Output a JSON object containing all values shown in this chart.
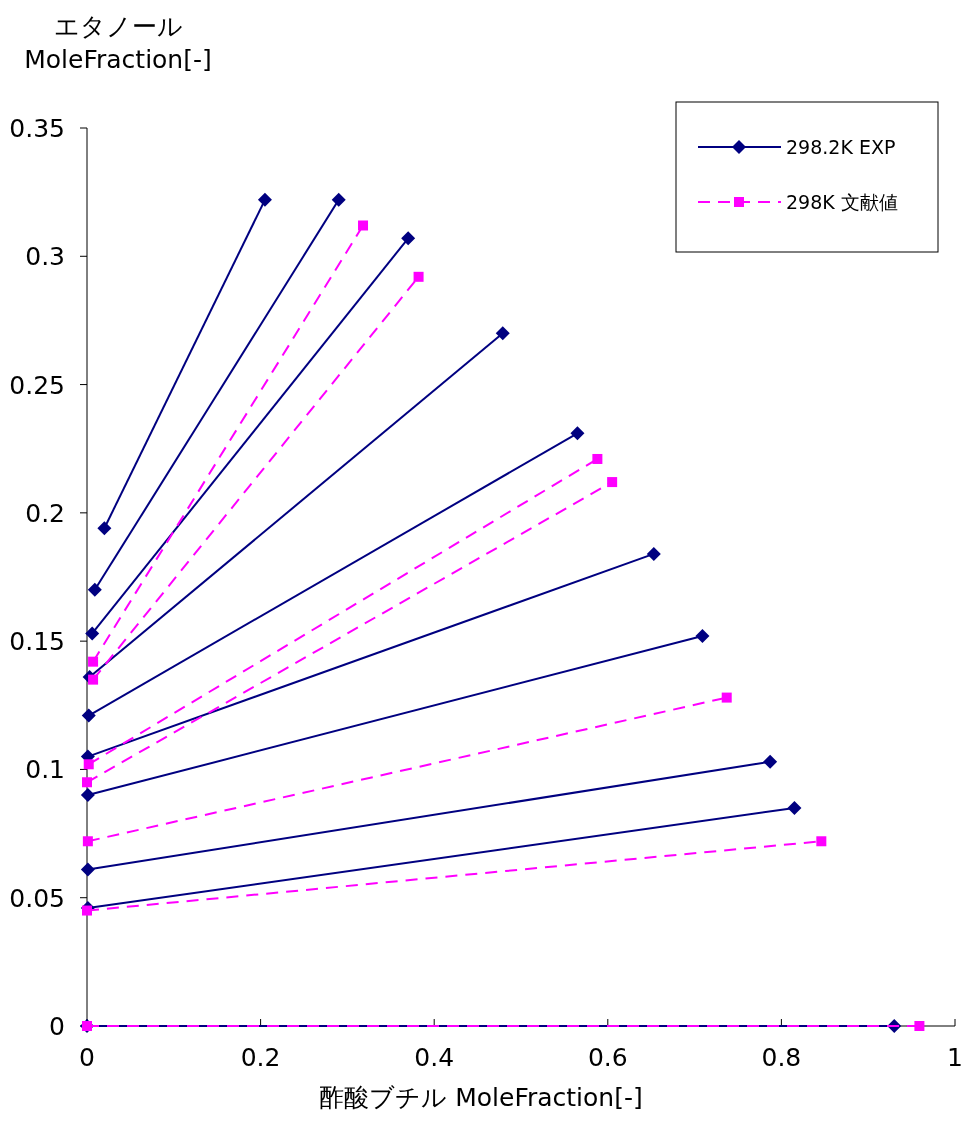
{
  "chart_data": {
    "type": "line",
    "xlabel": "酢酸ブチル  MoleFraction[-]",
    "ylabel": "エタノール\nMoleFraction[-]",
    "xlim": [
      0,
      1
    ],
    "xticks": [
      0,
      0.2,
      0.4,
      0.6,
      0.8,
      1
    ],
    "ylim": [
      0,
      0.35
    ],
    "yticks": [
      0,
      0.05,
      0.1,
      0.15,
      0.2,
      0.25,
      0.3,
      0.35
    ],
    "grid": false,
    "legend": "top right",
    "series": [
      {
        "name": "298.2K EXP",
        "color": "#000080",
        "marker": "diamond",
        "line_style": "solid",
        "x": [
          0.02,
          0.205
        ],
        "values": [
          0.194,
          0.322
        ]
      },
      {
        "color": "#000080",
        "marker": "diamond",
        "line_style": "solid",
        "x": [
          0.009,
          0.29
        ],
        "values": [
          0.17,
          0.322
        ]
      },
      {
        "color": "#000080",
        "marker": "diamond",
        "line_style": "solid",
        "x": [
          0.006,
          0.37
        ],
        "values": [
          0.153,
          0.307
        ]
      },
      {
        "color": "#000080",
        "marker": "diamond",
        "line_style": "solid",
        "x": [
          0.003,
          0.479
        ],
        "values": [
          0.136,
          0.27
        ]
      },
      {
        "color": "#000080",
        "marker": "diamond",
        "line_style": "solid",
        "x": [
          0.002,
          0.565
        ],
        "values": [
          0.121,
          0.231
        ]
      },
      {
        "color": "#000080",
        "marker": "diamond",
        "line_style": "solid",
        "x": [
          0.001,
          0.653
        ],
        "values": [
          0.105,
          0.184
        ]
      },
      {
        "color": "#000080",
        "marker": "diamond",
        "line_style": "solid",
        "x": [
          0.001,
          0.709
        ],
        "values": [
          0.09,
          0.152
        ]
      },
      {
        "color": "#000080",
        "marker": "diamond",
        "line_style": "solid",
        "x": [
          0.001,
          0.787
        ],
        "values": [
          0.061,
          0.103
        ]
      },
      {
        "color": "#000080",
        "marker": "diamond",
        "line_style": "solid",
        "x": [
          0.001,
          0.815
        ],
        "values": [
          0.046,
          0.085
        ]
      },
      {
        "color": "#000080",
        "marker": "diamond",
        "line_style": "solid",
        "x": [
          0,
          0.93
        ],
        "values": [
          0,
          0
        ]
      },
      {
        "name": "298K 文献値",
        "color": "#ff00ff",
        "marker": "square",
        "line_style": "dashed",
        "x": [
          0.007,
          0.318
        ],
        "values": [
          0.142,
          0.312
        ]
      },
      {
        "color": "#ff00ff",
        "marker": "square",
        "line_style": "dashed",
        "x": [
          0.007,
          0.382
        ],
        "values": [
          0.135,
          0.292
        ]
      },
      {
        "color": "#ff00ff",
        "marker": "square",
        "line_style": "dashed",
        "x": [
          0.002,
          0.588
        ],
        "values": [
          0.102,
          0.221
        ]
      },
      {
        "color": "#ff00ff",
        "marker": "square",
        "line_style": "dashed",
        "x": [
          0,
          0.605
        ],
        "values": [
          0.095,
          0.212
        ]
      },
      {
        "color": "#ff00ff",
        "marker": "square",
        "line_style": "dashed",
        "x": [
          0.001,
          0.737
        ],
        "values": [
          0.072,
          0.128
        ]
      },
      {
        "color": "#ff00ff",
        "marker": "square",
        "line_style": "dashed",
        "x": [
          0,
          0.846
        ],
        "values": [
          0.045,
          0.072
        ]
      },
      {
        "color": "#ff00ff",
        "marker": "square",
        "line_style": "dashed",
        "x": [
          0,
          0.959
        ],
        "values": [
          0,
          0
        ]
      }
    ]
  }
}
